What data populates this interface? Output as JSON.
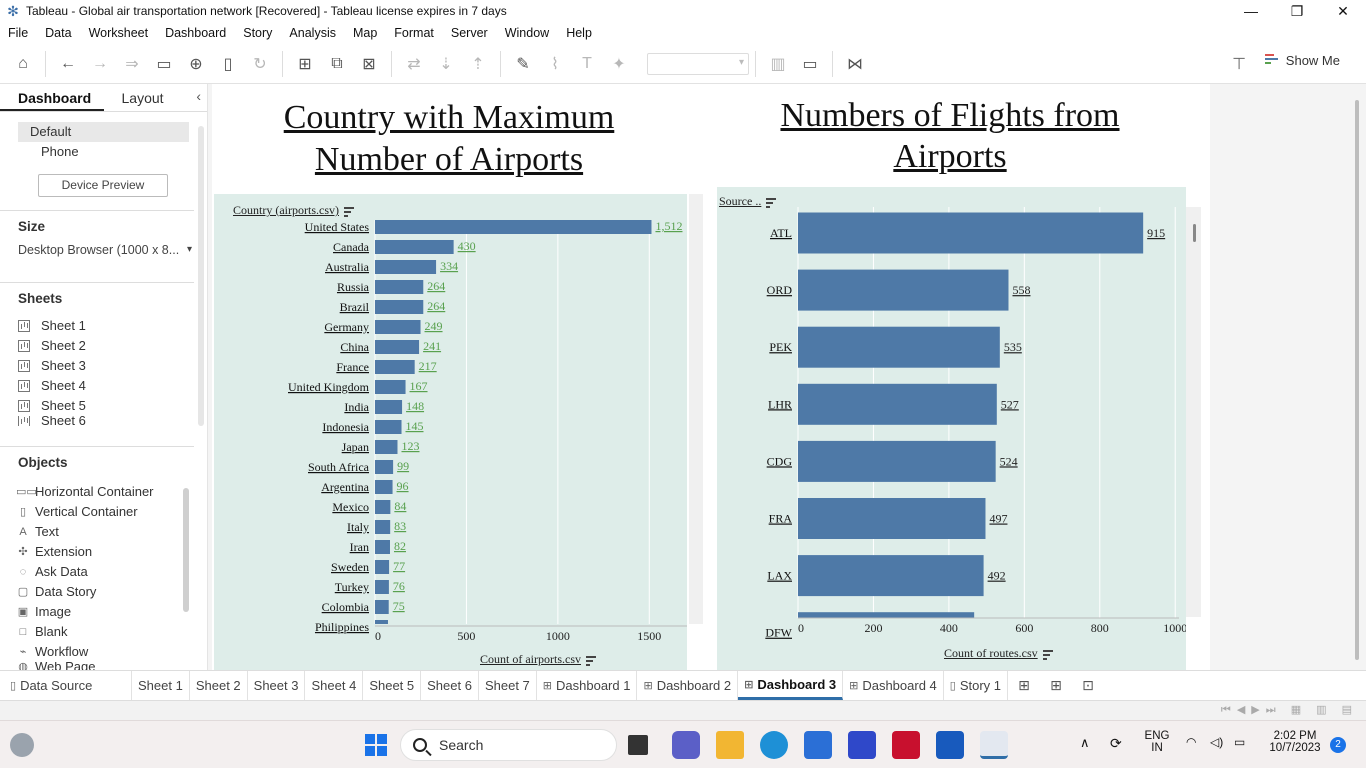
{
  "window": {
    "title": "Tableau - Global air transportation network [Recovered] - Tableau license expires in 7 days",
    "minimize": "—",
    "restore": "❐",
    "close": "✕"
  },
  "menu": [
    "File",
    "Data",
    "Worksheet",
    "Dashboard",
    "Story",
    "Analysis",
    "Map",
    "Format",
    "Server",
    "Window",
    "Help"
  ],
  "toolbar": {
    "show_me_label": "Show Me"
  },
  "left_panel": {
    "tabs": {
      "dashboard": "Dashboard",
      "layout": "Layout"
    },
    "devices": {
      "default": "Default",
      "phone": "Phone"
    },
    "device_preview_button": "Device Preview",
    "size": {
      "heading": "Size",
      "value": "Desktop Browser (1000 x 8..."
    },
    "sheets": {
      "heading": "Sheets",
      "items": [
        "Sheet 1",
        "Sheet 2",
        "Sheet 3",
        "Sheet 4",
        "Sheet 5",
        "Sheet 6"
      ]
    },
    "objects": {
      "heading": "Objects",
      "items": [
        {
          "label": "Horizontal Container",
          "icon": "horizontal-container-icon"
        },
        {
          "label": "Vertical Container",
          "icon": "vertical-container-icon"
        },
        {
          "label": "Text",
          "icon": "text-icon"
        },
        {
          "label": "Extension",
          "icon": "extension-icon"
        },
        {
          "label": "Ask Data",
          "icon": "ask-data-icon"
        },
        {
          "label": "Data Story",
          "icon": "data-story-icon"
        },
        {
          "label": "Image",
          "icon": "image-icon"
        },
        {
          "label": "Blank",
          "icon": "blank-icon"
        },
        {
          "label": "Workflow",
          "icon": "workflow-icon"
        },
        {
          "label": "Web Page",
          "icon": "web-page-icon"
        }
      ]
    }
  },
  "dashboard": {
    "left_title_line1": "Country with Maximum",
    "left_title_line2": "Number of Airports",
    "right_title_line1": "Numbers of Flights from",
    "right_title_line2": "Airports"
  },
  "chart_data": [
    {
      "type": "bar",
      "orientation": "horizontal",
      "row_header": "Country (airports.csv)",
      "xlabel": "Count of airports.csv",
      "categories": [
        "United States",
        "Canada",
        "Australia",
        "Russia",
        "Brazil",
        "Germany",
        "China",
        "France",
        "United Kingdom",
        "India",
        "Indonesia",
        "Japan",
        "South Africa",
        "Argentina",
        "Mexico",
        "Italy",
        "Iran",
        "Sweden",
        "Turkey",
        "Colombia",
        "Philippines"
      ],
      "values": [
        1512,
        430,
        334,
        264,
        264,
        249,
        241,
        217,
        167,
        148,
        145,
        123,
        99,
        96,
        84,
        83,
        82,
        77,
        76,
        75,
        71
      ],
      "x_ticks": [
        0,
        500,
        1000,
        1500
      ],
      "xlim": [
        0,
        1750
      ],
      "bar_color": "#4e79a7",
      "label_color": "#59a14f",
      "background": "#deede9"
    },
    {
      "type": "bar",
      "orientation": "horizontal",
      "row_header": "Source ..",
      "xlabel": "Count of routes.csv",
      "categories": [
        "ATL",
        "ORD",
        "PEK",
        "LHR",
        "CDG",
        "FRA",
        "LAX",
        "DFW"
      ],
      "values": [
        915,
        558,
        535,
        527,
        524,
        497,
        492,
        467
      ],
      "x_ticks": [
        0,
        200,
        400,
        600,
        800,
        1000
      ],
      "xlim": [
        0,
        1010
      ],
      "bar_color": "#4e79a7",
      "label_color": "#222222",
      "background": "#deede9"
    }
  ],
  "tabs": {
    "data_source": "Data Source",
    "items": [
      "Sheet 1",
      "Sheet 2",
      "Sheet 3",
      "Sheet 4",
      "Sheet 5",
      "Sheet 6",
      "Sheet 7",
      "Dashboard 1",
      "Dashboard 2",
      "Dashboard 3",
      "Dashboard 4",
      "Story 1"
    ],
    "active": "Dashboard 3"
  },
  "taskbar": {
    "search_label": "Search",
    "lang_line1": "ENG",
    "lang_line2": "IN",
    "time": "2:02 PM",
    "date": "10/7/2023",
    "notifications": "2"
  }
}
